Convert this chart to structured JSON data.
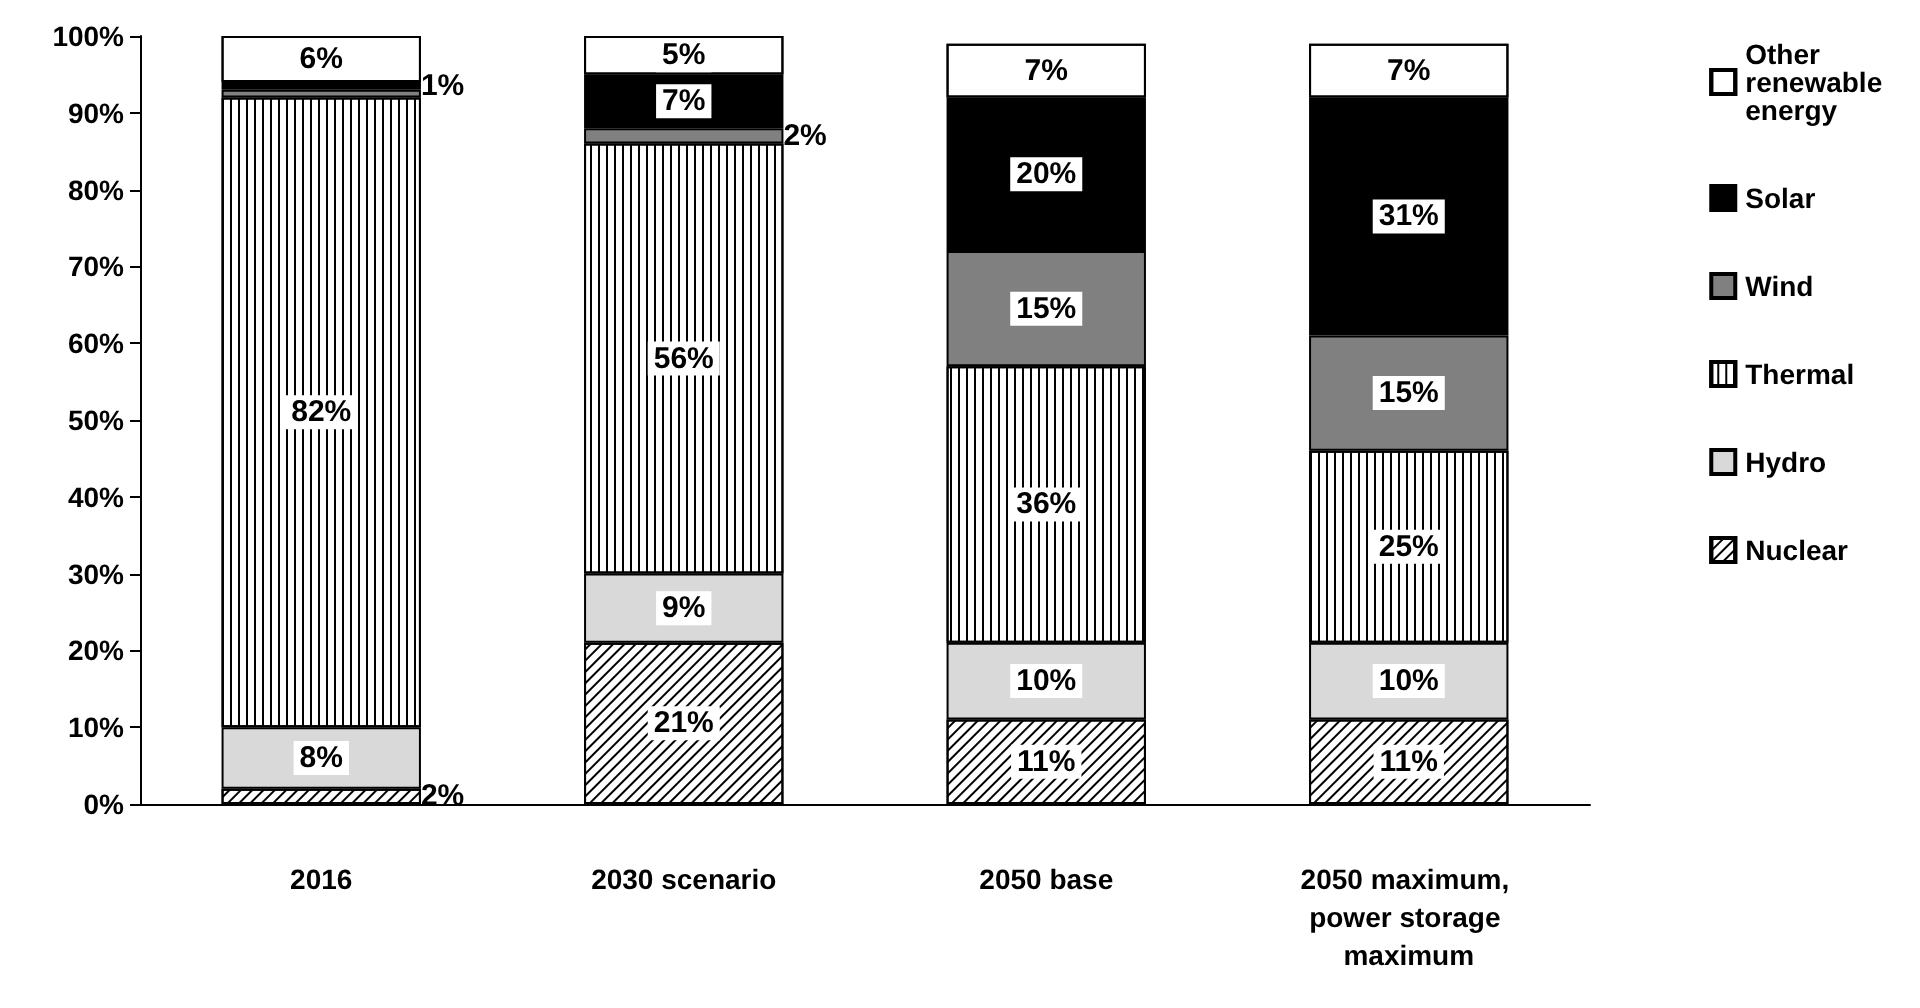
{
  "chart_data": {
    "type": "bar",
    "stacked": true,
    "categories": [
      "2016",
      "2030 scenario",
      "2050 base",
      "2050 maximum, power storage maximum"
    ],
    "series": [
      {
        "name": "Nuclear",
        "color": "#ffffff",
        "values": [
          2,
          21,
          11,
          11
        ],
        "value_labels": [
          "2%",
          "21%",
          "11%",
          "11%"
        ]
      },
      {
        "name": "Hydro",
        "color": "#d9d9d9",
        "values": [
          8,
          9,
          10,
          10
        ],
        "value_labels": [
          "8%",
          "9%",
          "10%",
          "10%"
        ]
      },
      {
        "name": "Thermal",
        "color": "#ffffff",
        "values": [
          82,
          56,
          36,
          25
        ],
        "value_labels": [
          "82%",
          "56%",
          "36%",
          "25%"
        ]
      },
      {
        "name": "Wind",
        "color": "#808080",
        "values": [
          1,
          2,
          15,
          15
        ],
        "value_labels": [
          null,
          "2%",
          "15%",
          "15%"
        ]
      },
      {
        "name": "Solar",
        "color": "#000000",
        "values": [
          1,
          7,
          20,
          31
        ],
        "value_labels": [
          "1%",
          "7%",
          "20%",
          "31%"
        ]
      },
      {
        "name": "Other renewable energy",
        "color": "#ffffff",
        "values": [
          6,
          5,
          7,
          7
        ],
        "value_labels": [
          "6%",
          "5%",
          "7%",
          "7%"
        ]
      }
    ],
    "ylim": [
      0,
      100
    ],
    "yticks": [
      {
        "value": 0,
        "label": "0%"
      },
      {
        "value": 10,
        "label": "10%"
      },
      {
        "value": 20,
        "label": "20%"
      },
      {
        "value": 30,
        "label": "30%"
      },
      {
        "value": 40,
        "label": "40%"
      },
      {
        "value": 50,
        "label": "50%"
      },
      {
        "value": 60,
        "label": "60%"
      },
      {
        "value": 70,
        "label": "70%"
      },
      {
        "value": 80,
        "label": "80%"
      },
      {
        "value": 90,
        "label": "90%"
      },
      {
        "value": 100,
        "label": "100%"
      }
    ],
    "grid": false,
    "legend": "right"
  }
}
